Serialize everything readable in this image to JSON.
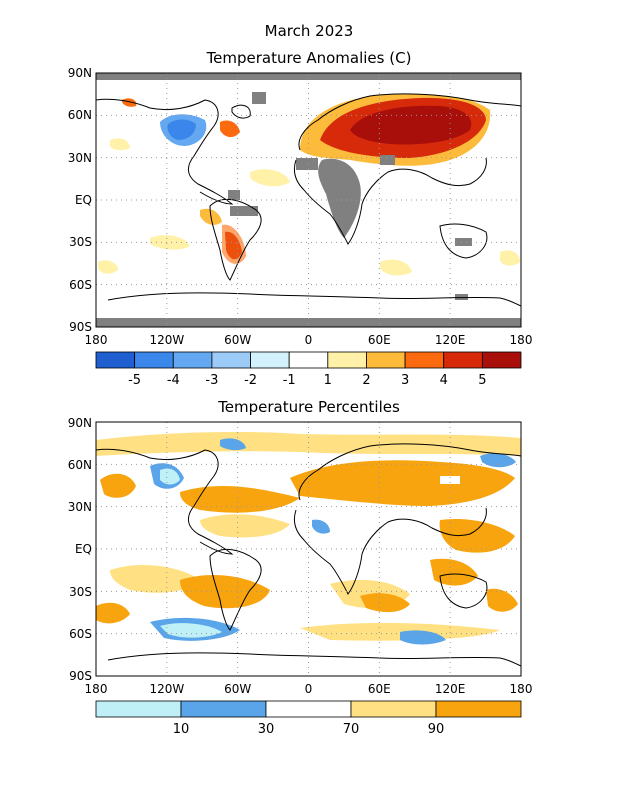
{
  "figure": {
    "title_month": "March 2023",
    "title_anomaly": "Temperature Anomalies (C)",
    "title_percentile": "Temperature Percentiles"
  },
  "axes": {
    "lat_labels": [
      "90N",
      "60N",
      "30N",
      "EQ",
      "30S",
      "60S",
      "90S"
    ],
    "lon_labels": [
      "180",
      "120W",
      "60W",
      "0",
      "60E",
      "120E",
      "180"
    ]
  },
  "colors": {
    "land_outline": "#000000",
    "missing": "#808080",
    "grid_dots": "#999999"
  },
  "anomaly_colorbar": {
    "colors": [
      "#1f5fd0",
      "#3a86ea",
      "#64a8f2",
      "#9ccbf7",
      "#d3f1fb",
      "#ffffff",
      "#fff1a8",
      "#fdbb3c",
      "#fb6a0e",
      "#d62a0a",
      "#a80f0b"
    ],
    "labels": [
      "-5",
      "-4",
      "-3",
      "-2",
      "-1",
      "1",
      "2",
      "3",
      "4",
      "5"
    ]
  },
  "percentile_colorbar": {
    "colors": [
      "#bff0f8",
      "#5aa4ea",
      "#ffffff",
      "#ffe183",
      "#f7a40e"
    ],
    "labels": [
      "10",
      "30",
      "70",
      "90"
    ]
  }
}
